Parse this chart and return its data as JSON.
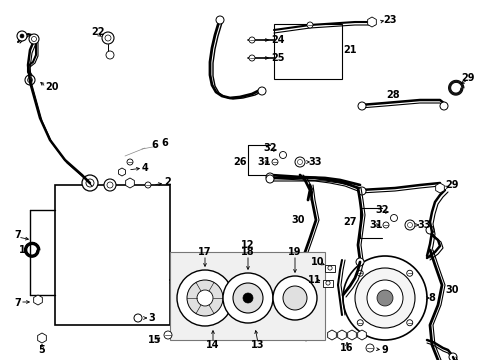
{
  "bg_color": "#ffffff",
  "line_color": "#000000",
  "gray_box": "#e8e8e8",
  "hatch_color": "#999999",
  "fig_w": 4.89,
  "fig_h": 3.6,
  "dpi": 100
}
